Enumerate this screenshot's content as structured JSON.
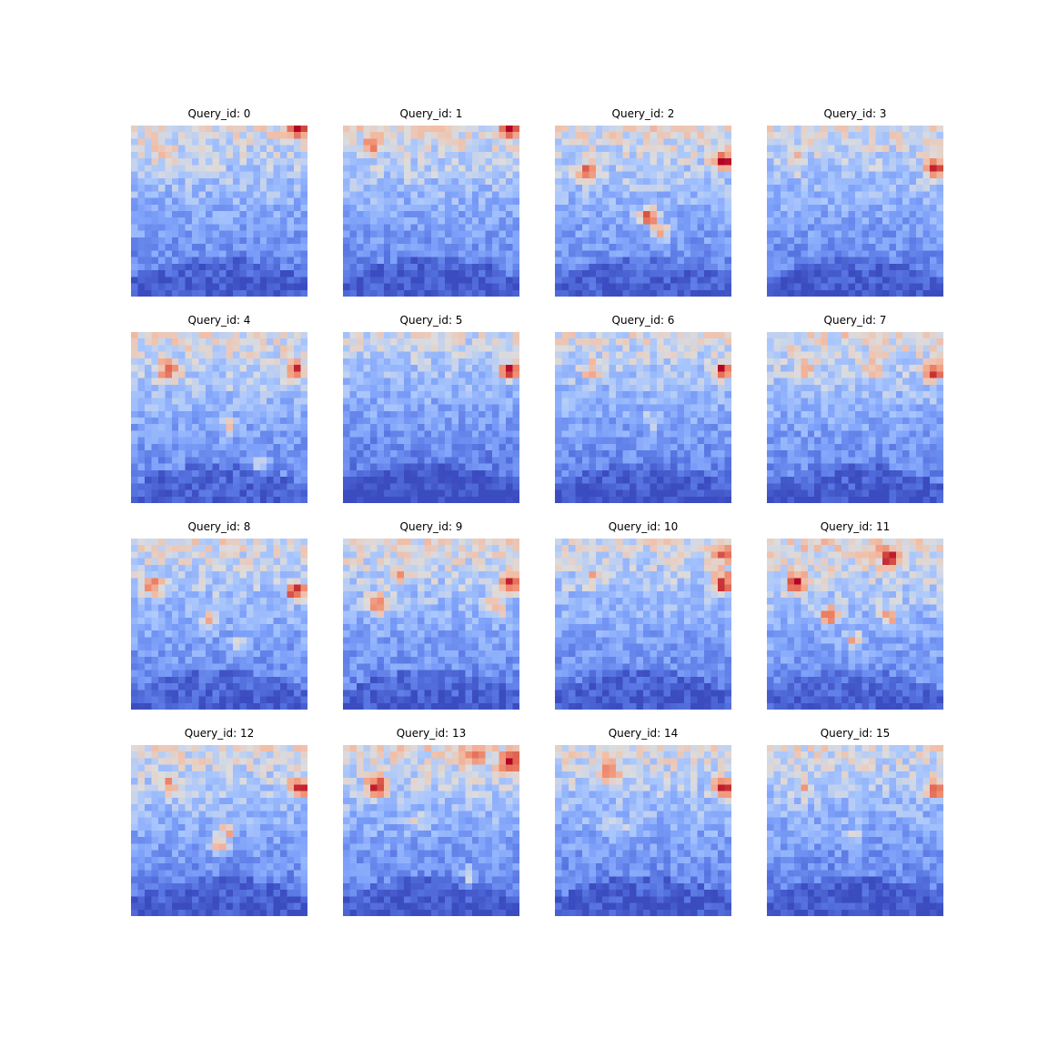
{
  "chart_data": [
    {
      "type": "heatmap",
      "title": "Query_id: 0",
      "colormap": "coolwarm",
      "grid": [
        26,
        26
      ],
      "hotspots": [
        [
          0.16,
          0.17,
          0.25
        ],
        [
          0.0,
          0.97,
          0.85
        ]
      ],
      "warm_rows": 0.35,
      "lower_cool": 0.85
    },
    {
      "type": "heatmap",
      "title": "Query_id: 1",
      "colormap": "coolwarm",
      "grid": [
        26,
        26
      ],
      "hotspots": [
        [
          0.1,
          0.15,
          0.4
        ],
        [
          0.0,
          0.97,
          0.9
        ]
      ],
      "warm_rows": 0.45,
      "lower_cool": 0.85
    },
    {
      "type": "heatmap",
      "title": "Query_id: 2",
      "colormap": "coolwarm",
      "grid": [
        26,
        26
      ],
      "hotspots": [
        [
          0.26,
          0.18,
          0.9
        ],
        [
          0.2,
          0.97,
          1.0
        ],
        [
          0.53,
          0.53,
          0.9
        ],
        [
          0.63,
          0.6,
          0.6
        ]
      ],
      "warm_rows": 0.4,
      "lower_cool": 0.8
    },
    {
      "type": "heatmap",
      "title": "Query_id: 3",
      "colormap": "coolwarm",
      "grid": [
        26,
        26
      ],
      "hotspots": [
        [
          0.2,
          0.15,
          0.35
        ],
        [
          0.25,
          0.97,
          0.95
        ]
      ],
      "warm_rows": 0.3,
      "lower_cool": 0.85
    },
    {
      "type": "heatmap",
      "title": "Query_id: 4",
      "colormap": "coolwarm",
      "grid": [
        26,
        26
      ],
      "hotspots": [
        [
          0.22,
          0.2,
          0.8
        ],
        [
          0.22,
          0.95,
          0.85
        ],
        [
          0.55,
          0.55,
          0.4
        ],
        [
          0.78,
          0.75,
          0.5
        ]
      ],
      "warm_rows": 0.35,
      "lower_cool": 0.8
    },
    {
      "type": "heatmap",
      "title": "Query_id: 5",
      "colormap": "coolwarm",
      "grid": [
        26,
        26
      ],
      "hotspots": [
        [
          0.22,
          0.96,
          0.95
        ]
      ],
      "warm_rows": 0.0,
      "lower_cool": 1.0
    },
    {
      "type": "heatmap",
      "title": "Query_id: 6",
      "colormap": "coolwarm",
      "grid": [
        26,
        26
      ],
      "hotspots": [
        [
          0.22,
          0.97,
          0.95
        ],
        [
          0.22,
          0.2,
          0.5
        ],
        [
          0.52,
          0.55,
          0.3
        ]
      ],
      "warm_rows": 0.15,
      "lower_cool": 0.9
    },
    {
      "type": "heatmap",
      "title": "Query_id: 7",
      "colormap": "coolwarm",
      "grid": [
        26,
        26
      ],
      "hotspots": [
        [
          0.2,
          0.2,
          0.5
        ],
        [
          0.22,
          0.97,
          0.9
        ],
        [
          0.2,
          0.6,
          0.3
        ]
      ],
      "warm_rows": 0.4,
      "lower_cool": 0.85
    },
    {
      "type": "heatmap",
      "title": "Query_id: 8",
      "colormap": "coolwarm",
      "grid": [
        26,
        26
      ],
      "hotspots": [
        [
          0.3,
          0.95,
          0.95
        ],
        [
          0.27,
          0.1,
          0.7
        ],
        [
          0.48,
          0.45,
          0.5
        ],
        [
          0.63,
          0.62,
          0.4
        ]
      ],
      "warm_rows": 0.3,
      "lower_cool": 0.8
    },
    {
      "type": "heatmap",
      "title": "Query_id: 9",
      "colormap": "coolwarm",
      "grid": [
        26,
        26
      ],
      "hotspots": [
        [
          0.24,
          0.97,
          0.8
        ],
        [
          0.38,
          0.18,
          0.9
        ],
        [
          0.4,
          0.88,
          0.6
        ],
        [
          0.2,
          0.3,
          0.4
        ]
      ],
      "warm_rows": 0.4,
      "lower_cool": 0.82
    },
    {
      "type": "heatmap",
      "title": "Query_id: 10",
      "colormap": "coolwarm",
      "grid": [
        26,
        26
      ],
      "hotspots": [
        [
          0.25,
          0.97,
          1.0
        ],
        [
          0.08,
          0.97,
          0.6
        ],
        [
          0.23,
          0.2,
          0.4
        ]
      ],
      "warm_rows": 0.15,
      "lower_cool": 0.85
    },
    {
      "type": "heatmap",
      "title": "Query_id: 11",
      "colormap": "coolwarm",
      "grid": [
        26,
        26
      ],
      "hotspots": [
        [
          0.25,
          0.15,
          0.9
        ],
        [
          0.45,
          0.35,
          0.8
        ],
        [
          0.45,
          0.7,
          0.6
        ],
        [
          0.1,
          0.7,
          0.7
        ],
        [
          0.6,
          0.5,
          0.6
        ]
      ],
      "warm_rows": 0.7,
      "lower_cool": 0.75
    },
    {
      "type": "heatmap",
      "title": "Query_id: 12",
      "colormap": "coolwarm",
      "grid": [
        26,
        26
      ],
      "hotspots": [
        [
          0.24,
          0.97,
          0.95
        ],
        [
          0.22,
          0.2,
          0.5
        ],
        [
          0.58,
          0.5,
          0.6
        ],
        [
          0.5,
          0.55,
          0.5
        ]
      ],
      "warm_rows": 0.3,
      "lower_cool": 0.85
    },
    {
      "type": "heatmap",
      "title": "Query_id: 13",
      "colormap": "coolwarm",
      "grid": [
        26,
        26
      ],
      "hotspots": [
        [
          0.05,
          0.75,
          0.6
        ],
        [
          0.08,
          0.97,
          1.0
        ],
        [
          0.23,
          0.18,
          0.9
        ],
        [
          0.45,
          0.4,
          0.35
        ],
        [
          0.78,
          0.72,
          0.5
        ]
      ],
      "warm_rows": 0.45,
      "lower_cool": 0.85
    },
    {
      "type": "heatmap",
      "title": "Query_id: 14",
      "colormap": "coolwarm",
      "grid": [
        26,
        26
      ],
      "hotspots": [
        [
          0.24,
          0.97,
          0.95
        ],
        [
          0.15,
          0.3,
          0.55
        ],
        [
          0.48,
          0.35,
          0.35
        ]
      ],
      "warm_rows": 0.3,
      "lower_cool": 0.85
    },
    {
      "type": "heatmap",
      "title": "Query_id: 15",
      "colormap": "coolwarm",
      "grid": [
        26,
        26
      ],
      "hotspots": [
        [
          0.25,
          0.97,
          0.95
        ],
        [
          0.25,
          0.2,
          0.45
        ],
        [
          0.52,
          0.5,
          0.3
        ]
      ],
      "warm_rows": 0.15,
      "lower_cool": 0.9
    }
  ]
}
